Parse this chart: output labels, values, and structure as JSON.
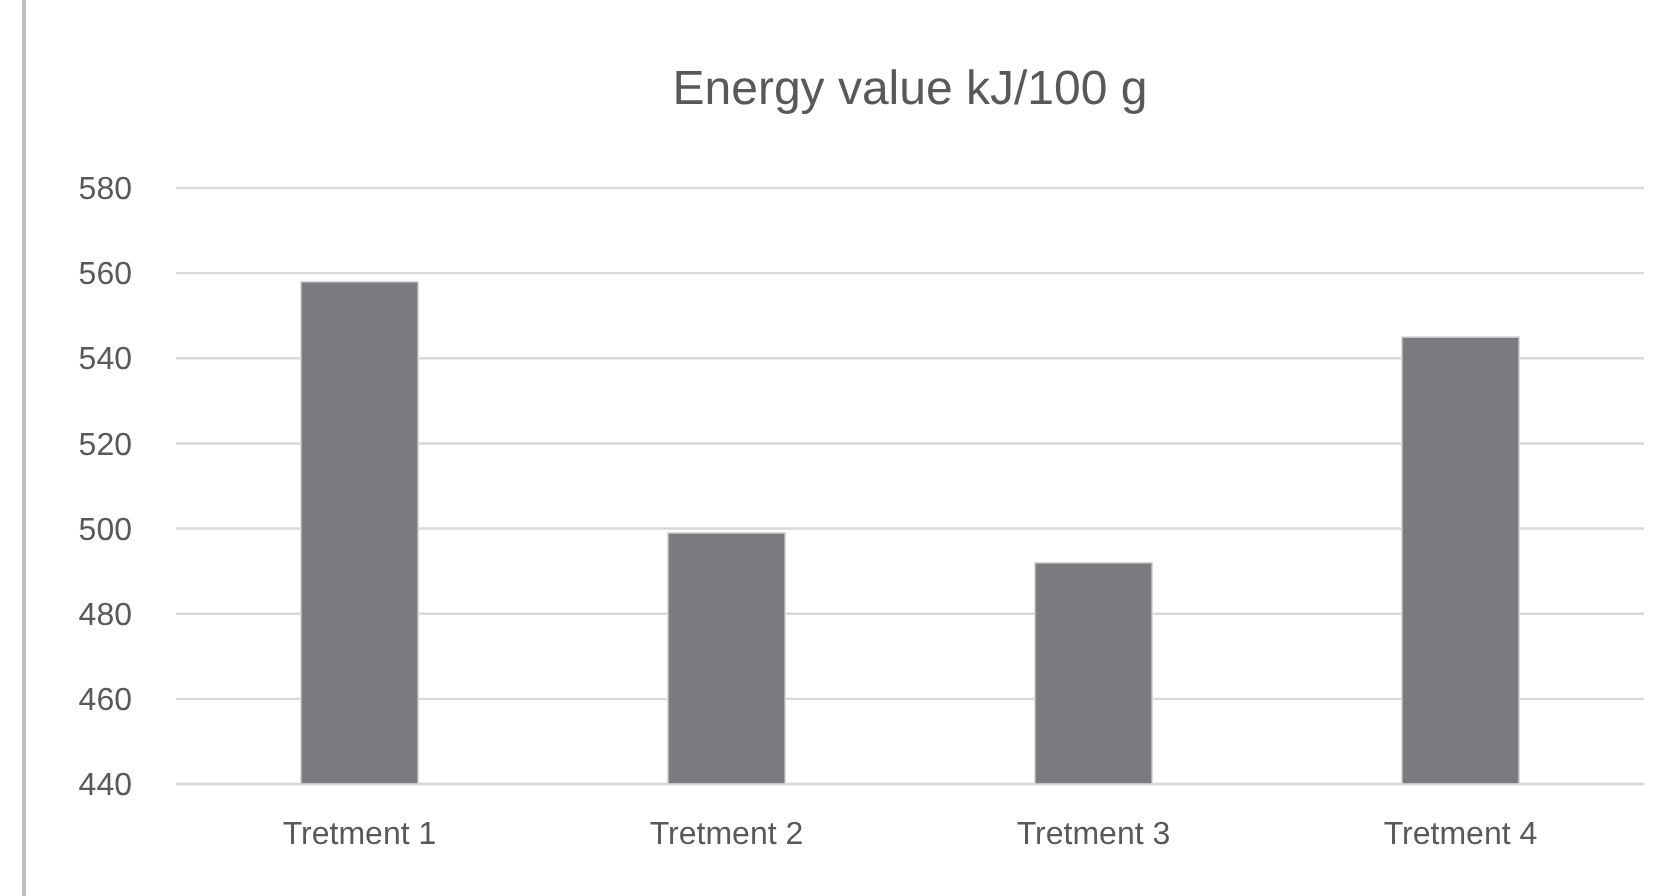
{
  "chart_data": {
    "type": "bar",
    "title": "Energy value kJ/100 g",
    "categories": [
      "Tretment 1",
      "Tretment 2",
      "Tretment 3",
      "Tretment 4"
    ],
    "values": [
      558,
      499,
      492,
      545
    ],
    "color": "#7a7b7f",
    "ylim": [
      440,
      580
    ],
    "yticks": [
      440,
      460,
      480,
      500,
      520,
      540,
      560,
      580
    ],
    "grid": "y"
  }
}
